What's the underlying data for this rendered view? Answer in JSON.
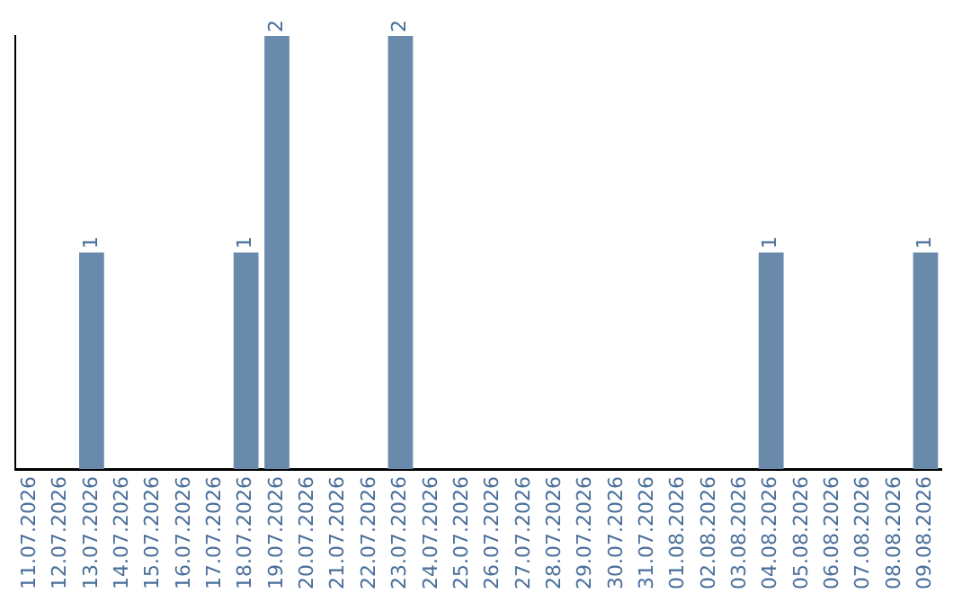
{
  "chart_data": {
    "type": "bar",
    "categories": [
      "11.07.2026",
      "12.07.2026",
      "13.07.2026",
      "14.07.2026",
      "15.07.2026",
      "16.07.2026",
      "17.07.2026",
      "18.07.2026",
      "19.07.2026",
      "20.07.2026",
      "21.07.2026",
      "22.07.2026",
      "23.07.2026",
      "24.07.2026",
      "25.07.2026",
      "26.07.2026",
      "27.07.2026",
      "28.07.2026",
      "29.07.2026",
      "30.07.2026",
      "31.07.2026",
      "01.08.2026",
      "02.08.2026",
      "03.08.2026",
      "04.08.2026",
      "05.08.2026",
      "06.08.2026",
      "07.08.2026",
      "08.08.2026",
      "09.08.2026"
    ],
    "values": [
      0,
      0,
      1,
      0,
      0,
      0,
      0,
      1,
      2,
      0,
      0,
      0,
      2,
      0,
      0,
      0,
      0,
      0,
      0,
      0,
      0,
      0,
      0,
      0,
      1,
      0,
      0,
      0,
      0,
      1
    ],
    "value_labels": [
      null,
      null,
      "1",
      null,
      null,
      null,
      null,
      "1",
      "2",
      null,
      null,
      null,
      "2",
      null,
      null,
      null,
      null,
      null,
      null,
      null,
      null,
      null,
      null,
      null,
      "1",
      null,
      null,
      null,
      null,
      "1"
    ],
    "color": "#6a8aab",
    "grid": false,
    "legend": false,
    "tick_labels": "x"
  }
}
